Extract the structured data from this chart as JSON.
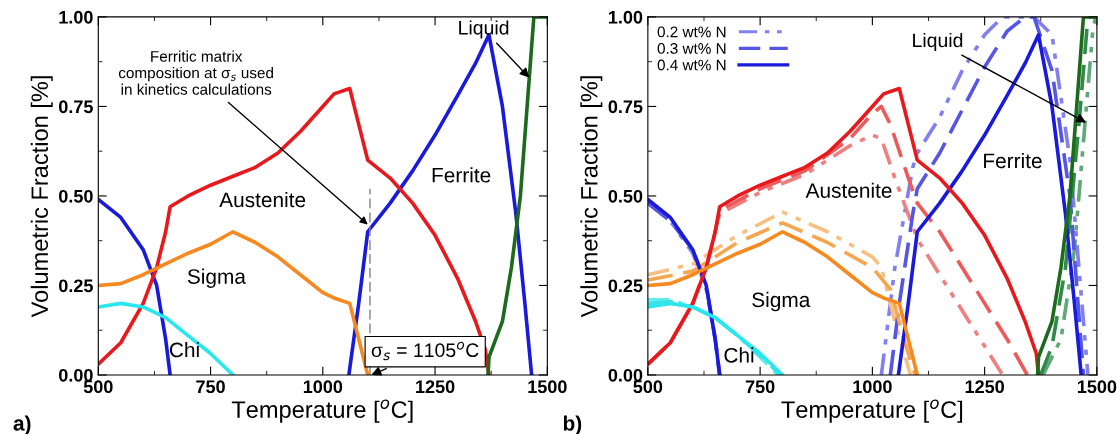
{
  "chart_data": [
    {
      "type": "line",
      "xlabel": "Temperature [$^{o}$C]",
      "ylabel": "Volumetric Fraction [%]",
      "xlim": [
        500,
        1500
      ],
      "ylim": [
        0,
        1
      ],
      "xticks": [
        500,
        750,
        1000,
        1250,
        1500
      ],
      "yticks": [
        {
          "value": 0,
          "label": "0.00"
        },
        {
          "value": 0.25,
          "label": "0.25"
        },
        {
          "value": 0.5,
          "label": "0.50"
        },
        {
          "value": 0.75,
          "label": "0.75"
        },
        {
          "value": 1,
          "label": "1.00"
        }
      ],
      "grid": false,
      "legend": false,
      "line_style": "solid",
      "series": [
        {
          "color": "#1a1adc",
          "x": [
            500,
            550,
            600,
            630,
            650,
            660,
            700,
            1058,
            1080,
            1100,
            1150,
            1200,
            1250,
            1300,
            1340,
            1370,
            1400,
            1430,
            1450,
            1465
          ],
          "values": [
            0.49,
            0.44,
            0.35,
            0.25,
            0.1,
            0,
            null,
            0,
            0.2,
            0.4,
            0.48,
            0.57,
            0.67,
            0.78,
            0.87,
            0.95,
            0.75,
            0.45,
            0.2,
            0
          ]
        },
        {
          "color": "#e8191c",
          "x": [
            500,
            550,
            600,
            630,
            650,
            660,
            700,
            750,
            800,
            850,
            900,
            950,
            1000,
            1025,
            1060,
            1080,
            1100,
            1150,
            1200,
            1250,
            1300,
            1340,
            1362,
            1370
          ],
          "values": [
            0.03,
            0.09,
            0.2,
            0.3,
            0.4,
            0.47,
            0.5,
            0.53,
            0.555,
            0.58,
            0.62,
            0.68,
            0.75,
            0.785,
            0.8,
            0.7,
            0.6,
            0.55,
            0.48,
            0.39,
            0.27,
            0.15,
            0.07,
            0
          ]
        },
        {
          "color": "#f7891f",
          "x": [
            500,
            550,
            600,
            650,
            700,
            750,
            800,
            850,
            900,
            950,
            1000,
            1025,
            1060,
            1080,
            1100
          ],
          "values": [
            0.25,
            0.255,
            0.28,
            0.31,
            0.34,
            0.365,
            0.4,
            0.37,
            0.33,
            0.28,
            0.23,
            0.215,
            0.2,
            0.1,
            0
          ]
        },
        {
          "color": "#2ae6ee",
          "x": [
            500,
            550,
            600,
            650,
            700,
            750,
            800
          ],
          "values": [
            0.19,
            0.2,
            0.19,
            0.16,
            0.11,
            0.06,
            0
          ]
        },
        {
          "color": "#1c6b1c",
          "x": [
            1368,
            1370,
            1400,
            1420,
            1440,
            1455,
            1470,
            1500
          ],
          "values": [
            0,
            0.05,
            0.15,
            0.3,
            0.5,
            0.75,
            1,
            1
          ]
        }
      ],
      "ref_lines": [
        {
          "axis": "x",
          "value": 1105,
          "color": "#808080",
          "line_style": "dashed"
        }
      ],
      "annotations": [
        "Austenite",
        "Sigma",
        "Chi",
        "Ferrite",
        {
          "text": "Liquid",
          "x": 1460,
          "y": 0.83
        },
        {
          "text": "Ferritic matrix\ncomposition at σ$_{s}$ used\nin kinetics calculations",
          "x": 1100,
          "y": 0.42
        },
        {
          "text": "σ$_{s}$ = 1105$^{o}$C",
          "x": 1108,
          "y": 0
        },
        "a)"
      ]
    },
    {
      "type": "line",
      "xlabel": "Temperature [$^{o}$C]",
      "ylabel": "Volumetric Fraction [%]",
      "xlim": [
        500,
        1500
      ],
      "ylim": [
        0,
        1
      ],
      "xticks": [
        500,
        750,
        1000,
        1250,
        1500
      ],
      "yticks": [
        {
          "value": 0,
          "label": "0.00"
        },
        {
          "value": 0.25,
          "label": "0.25"
        },
        {
          "value": 0.5,
          "label": "0.50"
        },
        {
          "value": 0.75,
          "label": "0.75"
        },
        {
          "value": 1,
          "label": "1.00"
        }
      ],
      "grid": false,
      "legend": "top left",
      "series": [
        {
          "name": "0.2 wt% N",
          "line_style": "dashdot",
          "color": "#8080ee",
          "x": [
            500,
            550,
            600,
            630,
            650,
            660,
            700,
            1020,
            1050,
            1090,
            1100,
            1150,
            1200,
            1250,
            1290,
            1360,
            1400,
            1440,
            1460,
            1480
          ],
          "values": [
            0.48,
            0.43,
            0.34,
            0.24,
            0.1,
            0,
            null,
            0,
            0.3,
            0.58,
            0.62,
            0.72,
            0.85,
            0.95,
            1,
            1,
            0.95,
            0.6,
            0.3,
            0
          ]
        },
        {
          "line_style": "dashdot",
          "color": "#f08080",
          "x": [
            500,
            550,
            600,
            630,
            650,
            660,
            750,
            850,
            950,
            1000,
            1020,
            1050,
            1100,
            1150,
            1200,
            1250,
            1290
          ],
          "values": [
            0.03,
            0.09,
            0.2,
            0.3,
            0.4,
            0.45,
            0.51,
            0.56,
            0.64,
            0.67,
            0.66,
            0.55,
            0.38,
            0.28,
            0.18,
            0.08,
            0
          ]
        },
        {
          "line_style": "dashdot",
          "color": "#f8c080",
          "x": [
            500,
            600,
            700,
            800,
            900,
            1000,
            1020,
            1050,
            1085
          ],
          "values": [
            0.28,
            0.31,
            0.39,
            0.455,
            0.4,
            0.33,
            0.3,
            0.15,
            0
          ]
        },
        {
          "line_style": "dashdot",
          "color": "#60ecf0",
          "x": [
            500,
            550,
            600,
            650,
            700,
            750,
            790
          ],
          "values": [
            0.21,
            0.21,
            0.19,
            0.16,
            0.11,
            0.05,
            0
          ]
        },
        {
          "line_style": "dashdot",
          "color": "#60a878",
          "x": [
            1380,
            1420,
            1450,
            1470,
            1490,
            1497
          ],
          "values": [
            0,
            0.1,
            0.35,
            0.65,
            0.95,
            1
          ]
        },
        {
          "name": "0.3 wt% N",
          "line_style": "dashed",
          "color": "#5555e6",
          "x": [
            500,
            550,
            600,
            630,
            650,
            660,
            700,
            1040,
            1060,
            1090,
            1100,
            1150,
            1200,
            1250,
            1300,
            1340,
            1360,
            1400,
            1440,
            1470
          ],
          "values": [
            0.48,
            0.43,
            0.35,
            0.25,
            0.1,
            0,
            null,
            0,
            0.2,
            0.45,
            0.52,
            0.62,
            0.74,
            0.86,
            0.96,
            1,
            1,
            0.85,
            0.5,
            0
          ]
        },
        {
          "line_style": "dashed",
          "color": "#ee5a5a",
          "x": [
            500,
            550,
            600,
            630,
            650,
            660,
            750,
            850,
            950,
            1000,
            1020,
            1040,
            1080,
            1100,
            1150,
            1200,
            1250,
            1300,
            1345
          ],
          "values": [
            0.03,
            0.09,
            0.2,
            0.3,
            0.4,
            0.46,
            0.52,
            0.57,
            0.66,
            0.73,
            0.75,
            0.7,
            0.55,
            0.48,
            0.4,
            0.3,
            0.2,
            0.1,
            0
          ]
        },
        {
          "line_style": "dashed",
          "color": "#f5a650",
          "x": [
            500,
            600,
            700,
            800,
            900,
            1000,
            1040,
            1070,
            1095
          ],
          "values": [
            0.265,
            0.29,
            0.37,
            0.425,
            0.37,
            0.3,
            0.24,
            0.1,
            0
          ]
        },
        {
          "line_style": "dashed",
          "color": "#40e0e8",
          "x": [
            500,
            550,
            600,
            650,
            700,
            750,
            795
          ],
          "values": [
            0.2,
            0.205,
            0.19,
            0.16,
            0.11,
            0.055,
            0
          ]
        },
        {
          "line_style": "dashed",
          "color": "#2f8a4a",
          "x": [
            1375,
            1400,
            1430,
            1460,
            1480,
            1500
          ],
          "values": [
            0,
            0.08,
            0.3,
            0.7,
            1,
            1
          ]
        },
        {
          "name": "0.4 wt% N",
          "line_style": "solid",
          "color": "#1a1adc",
          "x": [
            500,
            550,
            600,
            630,
            650,
            660,
            700,
            1058,
            1080,
            1100,
            1150,
            1200,
            1250,
            1300,
            1340,
            1370,
            1400,
            1430,
            1450,
            1465
          ],
          "values": [
            0.49,
            0.44,
            0.35,
            0.25,
            0.1,
            0,
            null,
            0,
            0.2,
            0.4,
            0.48,
            0.57,
            0.67,
            0.78,
            0.87,
            0.95,
            0.75,
            0.45,
            0.2,
            0
          ]
        },
        {
          "line_style": "solid",
          "color": "#e8191c",
          "x": [
            500,
            550,
            600,
            630,
            650,
            660,
            700,
            750,
            800,
            850,
            900,
            950,
            1000,
            1025,
            1060,
            1080,
            1100,
            1150,
            1200,
            1250,
            1300,
            1340,
            1365,
            1370
          ],
          "values": [
            0.03,
            0.09,
            0.2,
            0.3,
            0.4,
            0.47,
            0.5,
            0.53,
            0.555,
            0.58,
            0.62,
            0.68,
            0.75,
            0.785,
            0.8,
            0.7,
            0.6,
            0.55,
            0.48,
            0.39,
            0.27,
            0.15,
            0.06,
            0
          ]
        },
        {
          "line_style": "solid",
          "color": "#f7891f",
          "x": [
            500,
            550,
            600,
            650,
            700,
            750,
            800,
            850,
            900,
            950,
            1000,
            1025,
            1060,
            1080,
            1100
          ],
          "values": [
            0.25,
            0.255,
            0.28,
            0.31,
            0.34,
            0.365,
            0.4,
            0.37,
            0.33,
            0.28,
            0.23,
            0.215,
            0.2,
            0.1,
            0
          ]
        },
        {
          "line_style": "solid",
          "color": "#2ae6ee",
          "x": [
            500,
            550,
            600,
            650,
            700,
            750,
            800
          ],
          "values": [
            0.19,
            0.2,
            0.19,
            0.16,
            0.11,
            0.06,
            0
          ]
        },
        {
          "line_style": "solid",
          "color": "#1c6b1c",
          "x": [
            1368,
            1370,
            1400,
            1420,
            1440,
            1455,
            1470,
            1500
          ],
          "values": [
            0,
            0.05,
            0.15,
            0.3,
            0.5,
            0.75,
            1,
            1
          ]
        }
      ],
      "annotations": [
        "Austenite",
        "Sigma",
        "Chi",
        "Ferrite",
        {
          "text": "Liquid",
          "x": 1476,
          "y": 0.705
        },
        "b)"
      ]
    }
  ]
}
